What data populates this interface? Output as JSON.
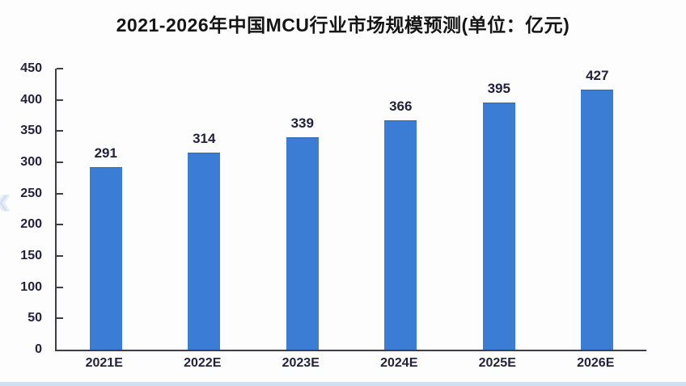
{
  "page": {
    "watermark_glyph": "‹‹"
  },
  "colors": {
    "bar": "#3b7cd4",
    "axis": "#3e3e46",
    "label_text": "#22223e",
    "title_text": "#151515",
    "bottom_edge_strip": "#cfe0f2"
  },
  "chart_data": {
    "type": "bar",
    "title": "2021-2026年中国MCU行业市场规模预测(单位：亿元)",
    "categories": [
      "2021E",
      "2022E",
      "2023E",
      "2024E",
      "2025E",
      "2026E"
    ],
    "values": [
      291,
      314,
      339,
      366,
      395,
      427
    ],
    "data_labels_shown": true,
    "xlabel": "",
    "ylabel": "",
    "ylim": [
      0,
      450
    ],
    "yticks": [
      0,
      50,
      100,
      150,
      200,
      250,
      300,
      350,
      400,
      450
    ],
    "grid": false,
    "legend": null,
    "bar_color": "#3b7cd4"
  }
}
